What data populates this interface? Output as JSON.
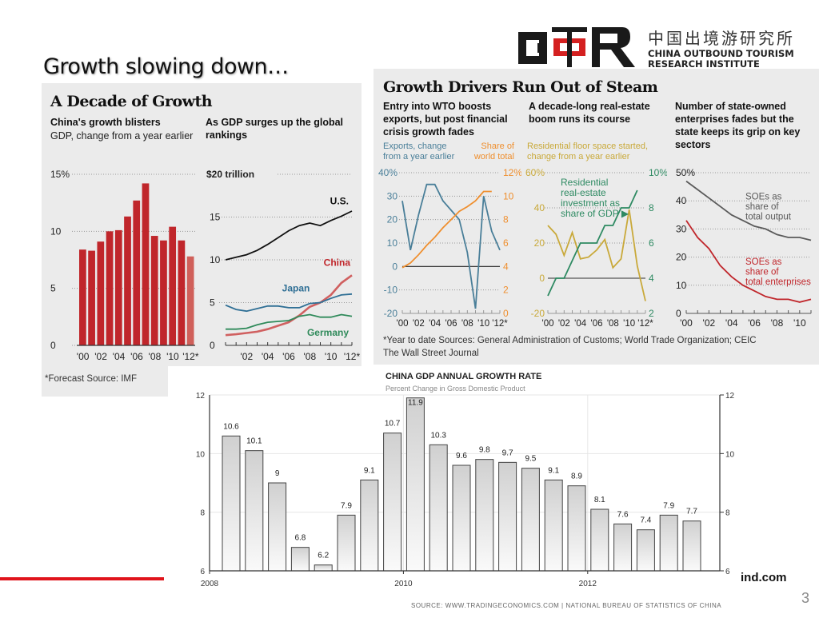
{
  "slide": {
    "title": "Growth slowing down…",
    "page_number": "3",
    "footer_fragment": "ind.com"
  },
  "logo": {
    "mark": "COTRI",
    "chinese": "中国出境游研究所",
    "english_line1": "CHINA OUTBOUND TOURISM",
    "english_line2": "RESEARCH INSTITUTE",
    "colors": {
      "black": "#1a1a1a",
      "red": "#d42020"
    }
  },
  "left_panel": {
    "heading": "A Decade of Growth",
    "note": "*Forecast  Source: IMF"
  },
  "right_panel": {
    "heading": "Growth Drivers Run Out of Steam",
    "note_line1": "*Year to date  Sources: General Administration of Customs; World Trade Organization; CEIC",
    "note_line2": "The Wall Street Journal"
  },
  "gdp_chart_source": "SOURCE: WWW.TRADINGECONOMICS.COM | NATIONAL BUREAU OF STATISTICS OF CHINA",
  "chart_data": [
    {
      "id": "growth-blisters",
      "type": "bar",
      "title": "China's growth blisters",
      "subtitle": "GDP, change from a year earlier",
      "categories": [
        "'00",
        "'01",
        "'02",
        "'03",
        "'04",
        "'05",
        "'06",
        "'07",
        "'08",
        "'09",
        "'10",
        "'11",
        "'12*"
      ],
      "tick_labels": [
        "'00",
        "'02",
        "'04",
        "'06",
        "'08",
        "'10",
        "'12*"
      ],
      "values": [
        8.4,
        8.3,
        9.1,
        10.0,
        10.1,
        11.3,
        12.7,
        14.2,
        9.6,
        9.2,
        10.4,
        9.2,
        7.8
      ],
      "forecast_index": 12,
      "yticks": [
        "0",
        "5",
        "10",
        "15%"
      ],
      "ylim": [
        0,
        15
      ],
      "colors": {
        "bar": "#c0262b",
        "forecast": "#d0605a"
      }
    },
    {
      "id": "gdp-rankings",
      "type": "line",
      "title": "As GDP surges up the global rankings",
      "x": [
        2000,
        2001,
        2002,
        2003,
        2004,
        2005,
        2006,
        2007,
        2008,
        2009,
        2010,
        2011,
        2012
      ],
      "tick_labels": [
        "'02",
        "'04",
        "'06",
        "'08",
        "'10",
        "'12*"
      ],
      "yticks": [
        "0",
        "5",
        "10",
        "15",
        "$20 trillion"
      ],
      "ylim": [
        0,
        20
      ],
      "series": [
        {
          "name": "U.S.",
          "color": "#111111",
          "values": [
            10.0,
            10.3,
            10.6,
            11.1,
            11.8,
            12.6,
            13.4,
            14.0,
            14.3,
            14.0,
            14.6,
            15.1,
            15.7
          ]
        },
        {
          "name": "China",
          "color": "#d06060",
          "values": [
            1.2,
            1.3,
            1.45,
            1.6,
            1.9,
            2.3,
            2.7,
            3.5,
            4.5,
            5.0,
            5.9,
            7.3,
            8.2
          ]
        },
        {
          "name": "Japan",
          "color": "#2f6f95",
          "values": [
            4.7,
            4.2,
            4.0,
            4.3,
            4.6,
            4.6,
            4.4,
            4.4,
            4.9,
            5.0,
            5.5,
            5.9,
            6.0
          ]
        },
        {
          "name": "Germany",
          "color": "#2f8a5a",
          "values": [
            1.9,
            1.9,
            2.0,
            2.4,
            2.7,
            2.8,
            2.9,
            3.4,
            3.6,
            3.3,
            3.3,
            3.6,
            3.4
          ]
        }
      ]
    },
    {
      "id": "exports",
      "type": "line",
      "title": "Entry into WTO boosts exports, but post financial crisis growth fades",
      "left_axis_label": "Exports, change from a year earlier",
      "right_axis_label": "Share of world total",
      "x": [
        2000,
        2001,
        2002,
        2003,
        2004,
        2005,
        2006,
        2007,
        2008,
        2009,
        2010,
        2011,
        2012
      ],
      "tick_labels": [
        "'00",
        "'02",
        "'04",
        "'06",
        "'08",
        "'10",
        "'12*"
      ],
      "yticks_left": [
        "-20",
        "-10",
        "0",
        "10",
        "20",
        "30",
        "40%"
      ],
      "yticks_right": [
        "0",
        "2",
        "4",
        "6",
        "8",
        "10",
        "12%"
      ],
      "ylim_left": [
        -20,
        40
      ],
      "ylim_right": [
        0,
        12
      ],
      "series": [
        {
          "name": "Exports change",
          "axis": "left",
          "color": "#4a7f99",
          "values": [
            28,
            7,
            22,
            35,
            35,
            28,
            24,
            20,
            6,
            -18,
            30,
            15,
            7
          ]
        },
        {
          "name": "Share of world total",
          "axis": "right",
          "color": "#ef8f2f",
          "values": [
            3.9,
            4.3,
            5.0,
            5.8,
            6.5,
            7.3,
            8.0,
            8.7,
            9.1,
            9.6,
            10.4,
            10.4
          ]
        }
      ]
    },
    {
      "id": "real-estate",
      "type": "line",
      "title": "A decade-long real-estate boom runs its course",
      "left_axis_label": "Residential floor space started, change from a year earlier",
      "series_annotation": "Residential real-estate investment as share of GDP ▶",
      "x": [
        2000,
        2001,
        2002,
        2003,
        2004,
        2005,
        2006,
        2007,
        2008,
        2009,
        2010,
        2011,
        2012
      ],
      "tick_labels": [
        "'00",
        "'02",
        "'04",
        "'06",
        "'08",
        "'10",
        "'12*"
      ],
      "yticks_left": [
        "-20",
        "0",
        "20",
        "40",
        "60%"
      ],
      "yticks_right": [
        "2",
        "4",
        "6",
        "8",
        "10%"
      ],
      "ylim_left": [
        -20,
        60
      ],
      "ylim_right": [
        2,
        10
      ],
      "series": [
        {
          "name": "Residential floor space started",
          "axis": "left",
          "color": "#c9a93a",
          "values": [
            30,
            25,
            13,
            26,
            11,
            12,
            16,
            22,
            6,
            11,
            39,
            7,
            -13
          ]
        },
        {
          "name": "Residential real-estate investment as share of GDP",
          "axis": "right",
          "color": "#2e8a62",
          "values": [
            3.0,
            4.0,
            4.0,
            5.0,
            6.0,
            6.0,
            6.0,
            7.0,
            7.0,
            8.0,
            8.0,
            9.0
          ]
        }
      ]
    },
    {
      "id": "soe",
      "type": "line",
      "title": "Number of state-owned enterprises fades but the state keeps its grip on key sectors",
      "x": [
        2000,
        2001,
        2002,
        2003,
        2004,
        2005,
        2006,
        2007,
        2008,
        2009,
        2010,
        2011
      ],
      "tick_labels": [
        "'00",
        "'02",
        "'04",
        "'06",
        "'08",
        "'10"
      ],
      "yticks": [
        "0",
        "10",
        "20",
        "30",
        "40",
        "50%"
      ],
      "ylim": [
        0,
        50
      ],
      "series": [
        {
          "name": "SOEs as share of total output",
          "label_lines": [
            "SOEs as",
            "share of",
            "total output"
          ],
          "color": "#5a5a5a",
          "values": [
            47,
            44,
            41,
            38,
            35,
            33,
            31,
            30,
            28,
            27,
            27,
            26
          ]
        },
        {
          "name": "SOEs as share of total enterprises",
          "label_lines": [
            "SOEs as",
            "share of",
            "total enterprises"
          ],
          "color": "#c0262b",
          "values": [
            33,
            27,
            23,
            17,
            13,
            10,
            8,
            6,
            5,
            5,
            4,
            5
          ]
        }
      ]
    },
    {
      "id": "china-gdp-annual",
      "type": "bar",
      "title": "CHINA GDP ANNUAL GROWTH RATE",
      "subtitle": "Percent Change in Gross Domestic Product",
      "x_tick_labels": [
        "2008",
        "2010",
        "2012"
      ],
      "x_tick_positions": [
        0,
        8,
        16
      ],
      "values": [
        10.6,
        10.1,
        9,
        6.8,
        6.2,
        7.9,
        9.1,
        10.7,
        11.9,
        10.3,
        9.6,
        9.8,
        9.7,
        9.5,
        9.1,
        8.9,
        8.1,
        7.6,
        7.4,
        7.9,
        7.7
      ],
      "value_labels": [
        "10.6",
        "10.1",
        "9",
        "6.8",
        "6.2",
        "7.9",
        "9.1",
        "10.7",
        "11.9",
        "10.3",
        "9.6",
        "9.8",
        "9.7",
        "9.5",
        "9.1",
        "8.9",
        "8.1",
        "7.6",
        "7.4",
        "7.9",
        "7.7"
      ],
      "yticks": [
        "6",
        "8",
        "10",
        "12"
      ],
      "ylim": [
        6,
        12
      ],
      "grid": true
    }
  ]
}
